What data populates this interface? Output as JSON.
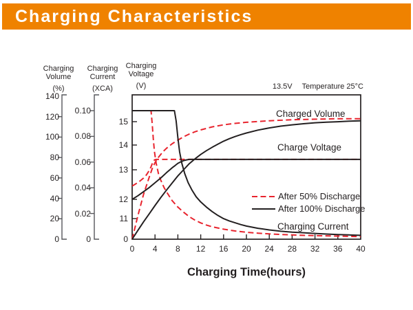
{
  "header": {
    "title": "Charging Characteristics"
  },
  "colors": {
    "header_bg": "#ef8200",
    "header_text": "#ffffff",
    "curve_red": "#e8232d",
    "curve_black": "#231f20",
    "axis_gray": "#55565a"
  },
  "chart_data": {
    "type": "line",
    "xlabel": "Charging Time(hours)",
    "condition": {
      "voltage": "13.5V",
      "temperature": "Temperature 25°C"
    },
    "curve_labels": {
      "charged_volume": "Charged Volume",
      "charge_voltage": "Charge Voltage",
      "charging_current": "Charging Current"
    },
    "legend": [
      {
        "label": "After 50% Discharge",
        "color": "#e8232d",
        "dash": true
      },
      {
        "label": "After 100% Discharge",
        "color": "#231f20",
        "dash": false
      }
    ],
    "x_axis": {
      "range": [
        0,
        40
      ],
      "ticks": [
        0,
        4,
        8,
        12,
        16,
        20,
        24,
        28,
        32,
        36,
        40
      ]
    },
    "y_axes": [
      {
        "id": "volume",
        "title_lines": [
          "Charging",
          "Volume"
        ],
        "unit": "(%)",
        "range": [
          0,
          140
        ],
        "ticks": [
          {
            "label": "140",
            "value": 140
          },
          {
            "label": "120",
            "value": 120
          },
          {
            "label": "100",
            "value": 100
          },
          {
            "label": "80",
            "value": 80
          },
          {
            "label": "60",
            "value": 60
          },
          {
            "label": "40",
            "value": 40
          },
          {
            "label": "20",
            "value": 20
          },
          {
            "label": "0",
            "value": 0
          }
        ]
      },
      {
        "id": "current",
        "title_lines": [
          "Charging",
          "Current"
        ],
        "unit": "(XCA)",
        "range": [
          0,
          0.1
        ],
        "ticks": [
          {
            "label": "0.10",
            "value": 0.1
          },
          {
            "label": "0.08",
            "value": 0.08
          },
          {
            "label": "0.06",
            "value": 0.06
          },
          {
            "label": "0.04",
            "value": 0.04
          },
          {
            "label": "0.02",
            "value": 0.02
          },
          {
            "label": "0",
            "value": 0
          }
        ]
      },
      {
        "id": "voltage",
        "title_lines": [
          "Charging",
          "Voltage"
        ],
        "unit": "(V)",
        "range": [
          0,
          15.5
        ],
        "ticks": [
          {
            "label": "15",
            "value": 15
          },
          {
            "label": "14",
            "value": 14
          },
          {
            "label": "13",
            "value": 13
          },
          {
            "label": "12",
            "value": 12
          },
          {
            "label": "11",
            "value": 11
          },
          {
            "label": "0",
            "value": 0
          }
        ]
      }
    ],
    "series": [
      {
        "id": "charge-voltage-50",
        "name": "Charge Voltage (After 50% Discharge)",
        "axis": "voltage",
        "color": "#e8232d",
        "dash": true,
        "points": [
          [
            0,
            12.45
          ],
          [
            0.5,
            12.51
          ],
          [
            1,
            12.57
          ],
          [
            1.5,
            12.64
          ],
          [
            2,
            12.72
          ],
          [
            2.5,
            12.83
          ],
          [
            3,
            12.98
          ],
          [
            3.3,
            13.12
          ],
          [
            3.6,
            13.3
          ],
          [
            3.9,
            13.4
          ],
          [
            4.2,
            13.42
          ],
          [
            6,
            13.42
          ],
          [
            10,
            13.42
          ],
          [
            15,
            13.42
          ],
          [
            20,
            13.42
          ],
          [
            25,
            13.42
          ],
          [
            30,
            13.42
          ],
          [
            35,
            13.42
          ],
          [
            40,
            13.42
          ]
        ]
      },
      {
        "id": "charged-volume-50",
        "name": "Charged Volume (After 50% Discharge)",
        "axis": "volume",
        "color": "#e8232d",
        "dash": true,
        "points": [
          [
            0,
            0
          ],
          [
            1,
            23
          ],
          [
            2,
            44
          ],
          [
            3,
            61
          ],
          [
            3.5,
            69
          ],
          [
            4,
            75
          ],
          [
            4.5,
            79.5
          ],
          [
            5,
            83
          ],
          [
            5.5,
            86.3
          ],
          [
            6,
            89
          ],
          [
            7,
            93.5
          ],
          [
            8,
            97
          ],
          [
            9,
            100.3
          ],
          [
            10,
            103
          ],
          [
            11,
            105.2
          ],
          [
            12,
            107
          ],
          [
            14,
            110
          ],
          [
            16,
            112
          ],
          [
            18,
            113.4
          ],
          [
            20,
            114.5
          ],
          [
            24,
            116
          ],
          [
            28,
            117
          ],
          [
            32,
            117.5
          ],
          [
            36,
            118
          ],
          [
            40,
            118
          ]
        ]
      },
      {
        "id": "charging-current-50",
        "name": "Charging Current (After 50% Discharge)",
        "axis": "current",
        "color": "#e8232d",
        "dash": true,
        "points": [
          [
            0,
            0.1
          ],
          [
            3.3,
            0.1
          ],
          [
            3.5,
            0.09
          ],
          [
            3.7,
            0.078
          ],
          [
            3.9,
            0.068
          ],
          [
            4.2,
            0.059
          ],
          [
            4.6,
            0.051
          ],
          [
            5,
            0.046
          ],
          [
            5.6,
            0.04
          ],
          [
            6.2,
            0.0355
          ],
          [
            7,
            0.03
          ],
          [
            8,
            0.025
          ],
          [
            9,
            0.021
          ],
          [
            10,
            0.0175
          ],
          [
            11,
            0.0148
          ],
          [
            12,
            0.0127
          ],
          [
            13,
            0.011
          ],
          [
            14,
            0.0097
          ],
          [
            16,
            0.0078
          ],
          [
            18,
            0.0064
          ],
          [
            20,
            0.0054
          ],
          [
            22,
            0.0047
          ],
          [
            24,
            0.0041
          ],
          [
            26,
            0.0037
          ],
          [
            28,
            0.0033
          ],
          [
            30,
            0.003
          ],
          [
            32,
            0.0028
          ],
          [
            34,
            0.0026
          ],
          [
            36,
            0.0024
          ],
          [
            38,
            0.0022
          ],
          [
            40,
            0.002
          ]
        ]
      },
      {
        "id": "charge-voltage-100",
        "name": "Charge Voltage (After 100% Discharge)",
        "axis": "voltage",
        "color": "#231f20",
        "dash": false,
        "points": [
          [
            0,
            12.0
          ],
          [
            1,
            12.12
          ],
          [
            2,
            12.26
          ],
          [
            3,
            12.4
          ],
          [
            4,
            12.56
          ],
          [
            5,
            12.72
          ],
          [
            6,
            12.9
          ],
          [
            7,
            13.08
          ],
          [
            7.5,
            13.17
          ],
          [
            8,
            13.26
          ],
          [
            8.5,
            13.32
          ],
          [
            9,
            13.37
          ],
          [
            9.5,
            13.4
          ],
          [
            10,
            13.42
          ],
          [
            14,
            13.42
          ],
          [
            18,
            13.42
          ],
          [
            22,
            13.42
          ],
          [
            26,
            13.42
          ],
          [
            30,
            13.42
          ],
          [
            34,
            13.42
          ],
          [
            38,
            13.42
          ],
          [
            40,
            13.42
          ]
        ]
      },
      {
        "id": "charged-volume-100",
        "name": "Charged Volume (After 100% Discharge)",
        "axis": "volume",
        "color": "#231f20",
        "dash": false,
        "points": [
          [
            0,
            0
          ],
          [
            1,
            8.6
          ],
          [
            2,
            17
          ],
          [
            3,
            25
          ],
          [
            4,
            33
          ],
          [
            5,
            40.7
          ],
          [
            6,
            48
          ],
          [
            7,
            55
          ],
          [
            8,
            62
          ],
          [
            9,
            68
          ],
          [
            10,
            74
          ],
          [
            11,
            78.7
          ],
          [
            12,
            83
          ],
          [
            13,
            86.7
          ],
          [
            14,
            90
          ],
          [
            15,
            93
          ],
          [
            16,
            96
          ],
          [
            17,
            98.4
          ],
          [
            18,
            100.5
          ],
          [
            19,
            102.4
          ],
          [
            20,
            104
          ],
          [
            22,
            106.8
          ],
          [
            24,
            109
          ],
          [
            26,
            110.7
          ],
          [
            28,
            112
          ],
          [
            30,
            113.1
          ],
          [
            32,
            114
          ],
          [
            34,
            114.6
          ],
          [
            36,
            115
          ],
          [
            38,
            115.6
          ],
          [
            40,
            116
          ]
        ]
      },
      {
        "id": "charging-current-100",
        "name": "Charging Current (After 100% Discharge)",
        "axis": "current",
        "color": "#231f20",
        "dash": false,
        "points": [
          [
            0,
            0.1
          ],
          [
            7.4,
            0.1
          ],
          [
            7.7,
            0.092
          ],
          [
            8,
            0.079
          ],
          [
            8.3,
            0.068
          ],
          [
            8.7,
            0.059
          ],
          [
            9.2,
            0.051
          ],
          [
            9.8,
            0.044
          ],
          [
            10.5,
            0.038
          ],
          [
            11.2,
            0.033
          ],
          [
            12,
            0.029
          ],
          [
            13,
            0.025
          ],
          [
            14,
            0.0215
          ],
          [
            15,
            0.0185
          ],
          [
            16,
            0.016
          ],
          [
            17,
            0.0142
          ],
          [
            18,
            0.0128
          ],
          [
            19,
            0.0114
          ],
          [
            20,
            0.0102
          ],
          [
            22,
            0.0085
          ],
          [
            24,
            0.0072
          ],
          [
            26,
            0.0062
          ],
          [
            28,
            0.0055
          ],
          [
            30,
            0.005
          ],
          [
            32,
            0.0045
          ],
          [
            34,
            0.004
          ],
          [
            36,
            0.0036
          ],
          [
            38,
            0.0033
          ],
          [
            40,
            0.003
          ]
        ]
      }
    ]
  }
}
